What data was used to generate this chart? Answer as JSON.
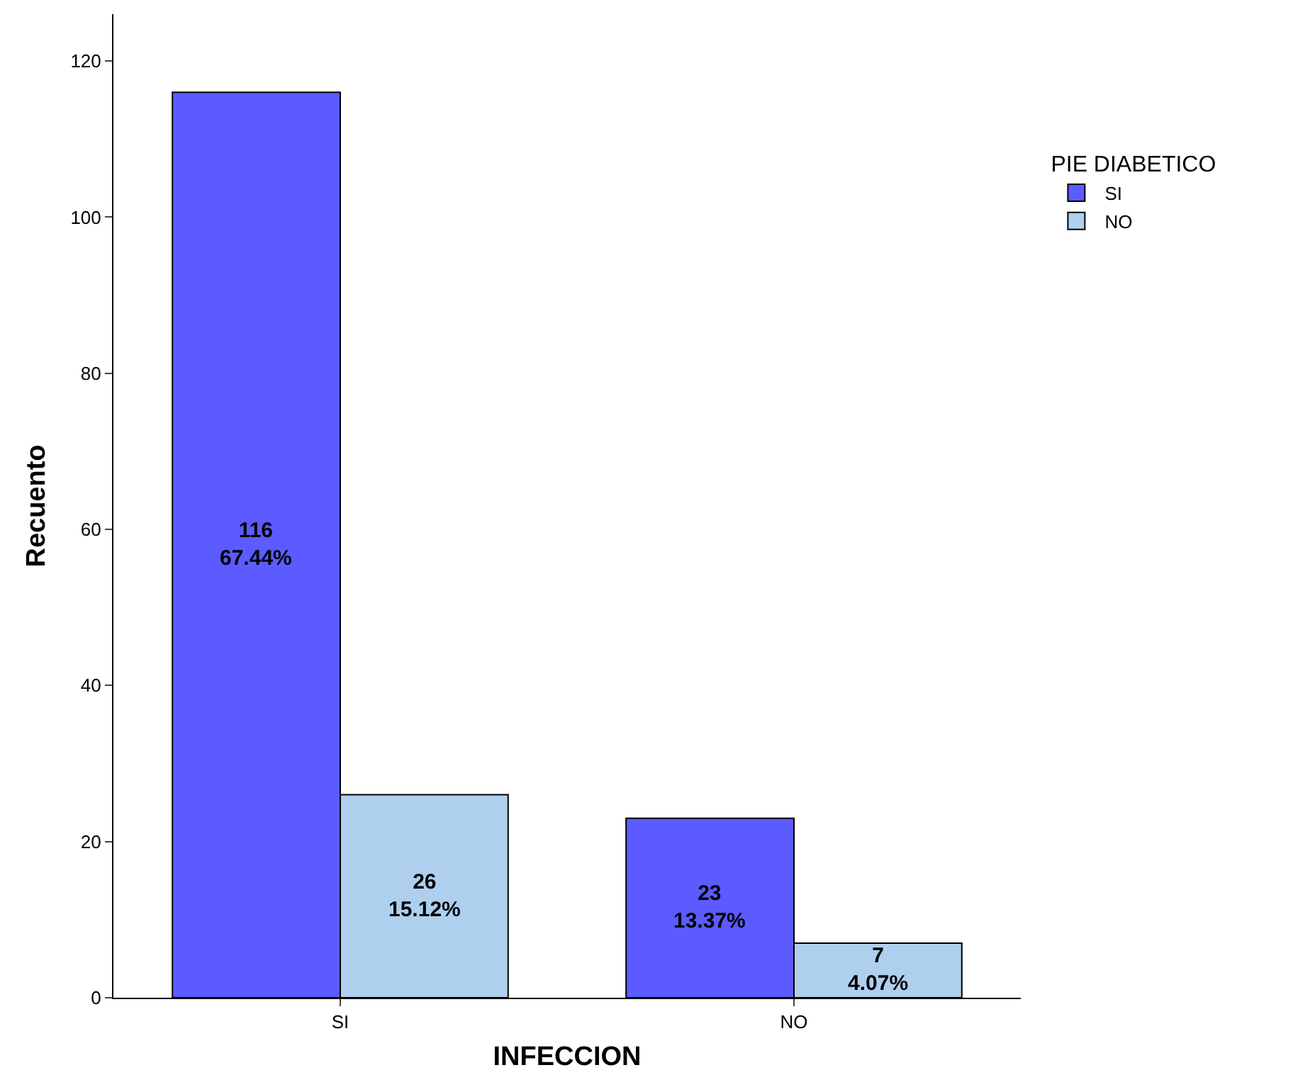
{
  "chart_data": {
    "type": "bar",
    "xlabel": "INFECCION",
    "ylabel": "Recuento",
    "legend_title": "PIE DIABETICO",
    "categories": [
      "SI",
      "NO"
    ],
    "series": [
      {
        "name": "SI",
        "color": "#5b5bff",
        "values": [
          116,
          23
        ],
        "value_labels": [
          "116\n67.44%",
          "23\n13.37%"
        ]
      },
      {
        "name": "NO",
        "color": "#aecfee",
        "values": [
          26,
          7
        ],
        "value_labels": [
          "26\n15.12%",
          "7\n4.07%"
        ]
      }
    ],
    "ylim": [
      0,
      126
    ],
    "yticks": [
      0,
      20,
      40,
      60,
      80,
      100,
      120
    ],
    "grid": false,
    "legend": "top right"
  }
}
